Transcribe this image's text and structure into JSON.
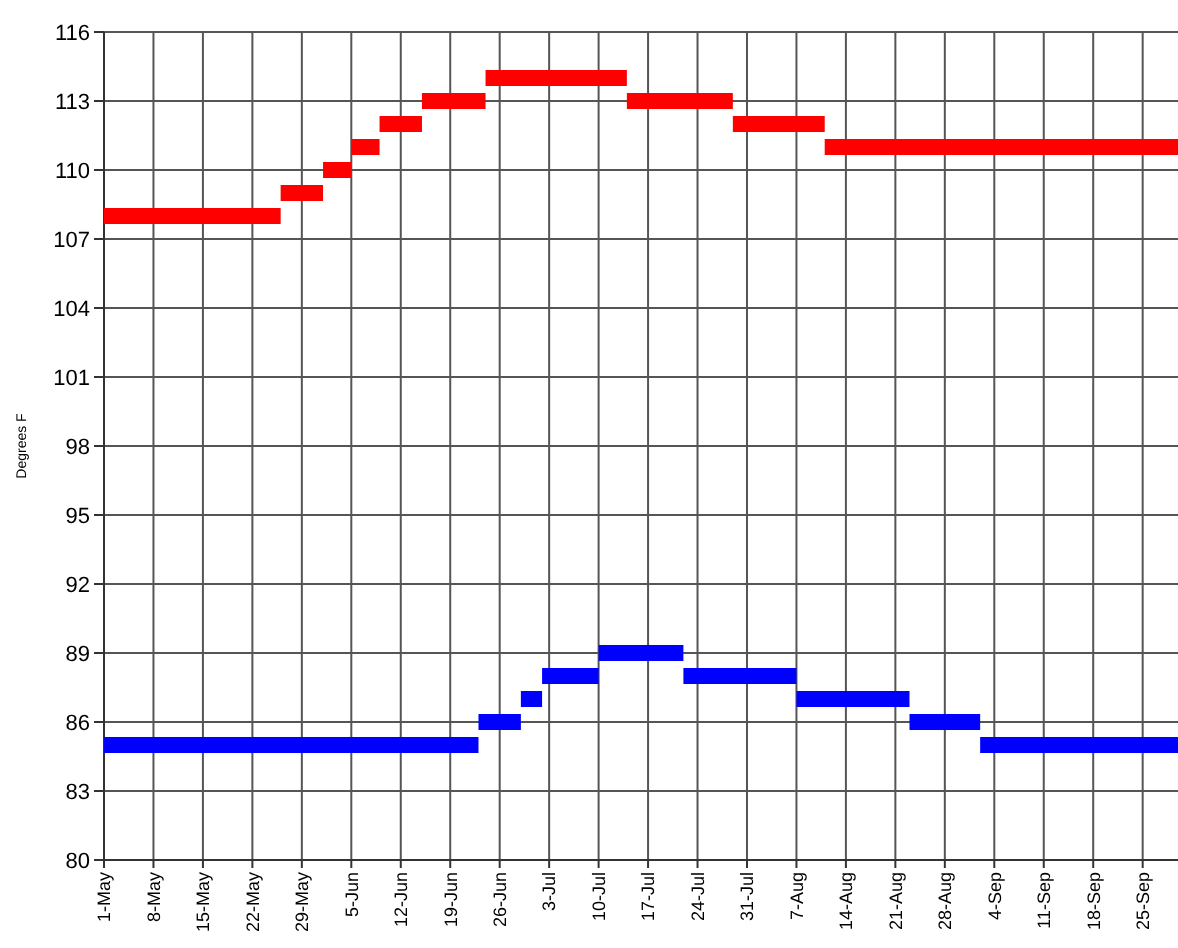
{
  "chart_data": {
    "type": "step",
    "ylabel": "Degrees F",
    "xlim": [
      "--05-01",
      "--09-30"
    ],
    "xticks": [
      {
        "value": "--05-01",
        "label": "1-May"
      },
      {
        "value": "--05-08",
        "label": "8-May"
      },
      {
        "value": "--05-15",
        "label": "15-May"
      },
      {
        "value": "--05-22",
        "label": "22-May"
      },
      {
        "value": "--05-29",
        "label": "29-May"
      },
      {
        "value": "--06-05",
        "label": "5-Jun"
      },
      {
        "value": "--06-12",
        "label": "12-Jun"
      },
      {
        "value": "--06-19",
        "label": "19-Jun"
      },
      {
        "value": "--06-26",
        "label": "26-Jun"
      },
      {
        "value": "--07-03",
        "label": "3-Jul"
      },
      {
        "value": "--07-10",
        "label": "10-Jul"
      },
      {
        "value": "--07-17",
        "label": "17-Jul"
      },
      {
        "value": "--07-24",
        "label": "24-Jul"
      },
      {
        "value": "--07-31",
        "label": "31-Jul"
      },
      {
        "value": "--08-07",
        "label": "7-Aug"
      },
      {
        "value": "--08-14",
        "label": "14-Aug"
      },
      {
        "value": "--08-21",
        "label": "21-Aug"
      },
      {
        "value": "--08-28",
        "label": "28-Aug"
      },
      {
        "value": "--09-04",
        "label": "4-Sep"
      },
      {
        "value": "--09-11",
        "label": "11-Sep"
      },
      {
        "value": "--09-18",
        "label": "18-Sep"
      },
      {
        "value": "--09-25",
        "label": "25-Sep"
      }
    ],
    "ylim": [
      80,
      116
    ],
    "yticks": [
      80,
      83,
      86,
      89,
      92,
      95,
      98,
      101,
      104,
      107,
      110,
      113,
      116
    ],
    "grid": true,
    "marker": "none",
    "series": [
      {
        "color": "#ff0000",
        "x": [
          "--05-01",
          "--05-26",
          "--06-01",
          "--06-05",
          "--06-09",
          "--06-15",
          "--06-24",
          "--07-14",
          "--07-29",
          "--08-11",
          "--09-30"
        ],
        "values": [
          108,
          109,
          110,
          111,
          112,
          113,
          114,
          113,
          112,
          111,
          111
        ]
      },
      {
        "color": "#0000ff",
        "x": [
          "--05-01",
          "--06-23",
          "--06-29",
          "--07-02",
          "--07-10",
          "--07-22",
          "--08-07",
          "--08-23",
          "--09-02",
          "--09-30"
        ],
        "values": [
          85,
          86,
          87,
          88,
          89,
          88,
          87,
          86,
          85,
          85
        ]
      }
    ]
  }
}
